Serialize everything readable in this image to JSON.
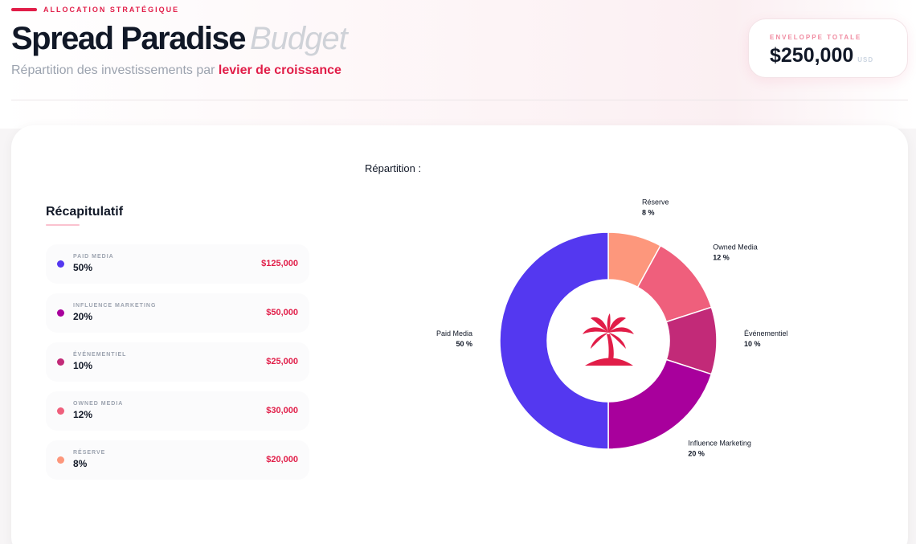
{
  "header": {
    "eyebrow": "ALLOCATION STRATÉGIQUE",
    "title": "Spread Paradise",
    "title_suffix": "Budget",
    "subtitle": "Répartition des investissements par",
    "subtitle_accent": "levier de croissance"
  },
  "total": {
    "label": "ENVELOPPE TOTALE",
    "value": "$250,000",
    "currency": "USD"
  },
  "recap": {
    "title": "Récapitulatif",
    "items": [
      {
        "name": "PAID MEDIA",
        "pct": "50%",
        "amount": "$125,000",
        "color": "#5438f0"
      },
      {
        "name": "INFLUENCE MARKETING",
        "pct": "20%",
        "amount": "$50,000",
        "color": "#a8009c"
      },
      {
        "name": "ÉVÉNEMENTIEL",
        "pct": "10%",
        "amount": "$25,000",
        "color": "#c22a78"
      },
      {
        "name": "OWNED MEDIA",
        "pct": "12%",
        "amount": "$30,000",
        "color": "#ef5f7c"
      },
      {
        "name": "RÉSERVE",
        "pct": "8%",
        "amount": "$20,000",
        "color": "#fd977c"
      }
    ]
  },
  "chart_data": {
    "type": "pie",
    "style": "donut",
    "title": "Répartition :",
    "center_icon": "palm-tree-icon",
    "slices": [
      {
        "label": "Réserve",
        "value": 8,
        "value_label": "8 %",
        "color": "#fd977c"
      },
      {
        "label": "Owned Media",
        "value": 12,
        "value_label": "12 %",
        "color": "#ef5f7c"
      },
      {
        "label": "Événementiel",
        "value": 10,
        "value_label": "10 %",
        "color": "#c22a78"
      },
      {
        "label": "Influence Marketing",
        "value": 20,
        "value_label": "20 %",
        "color": "#a8009c"
      },
      {
        "label": "Paid Media",
        "value": 50,
        "value_label": "50 %",
        "color": "#5438f0"
      }
    ]
  }
}
